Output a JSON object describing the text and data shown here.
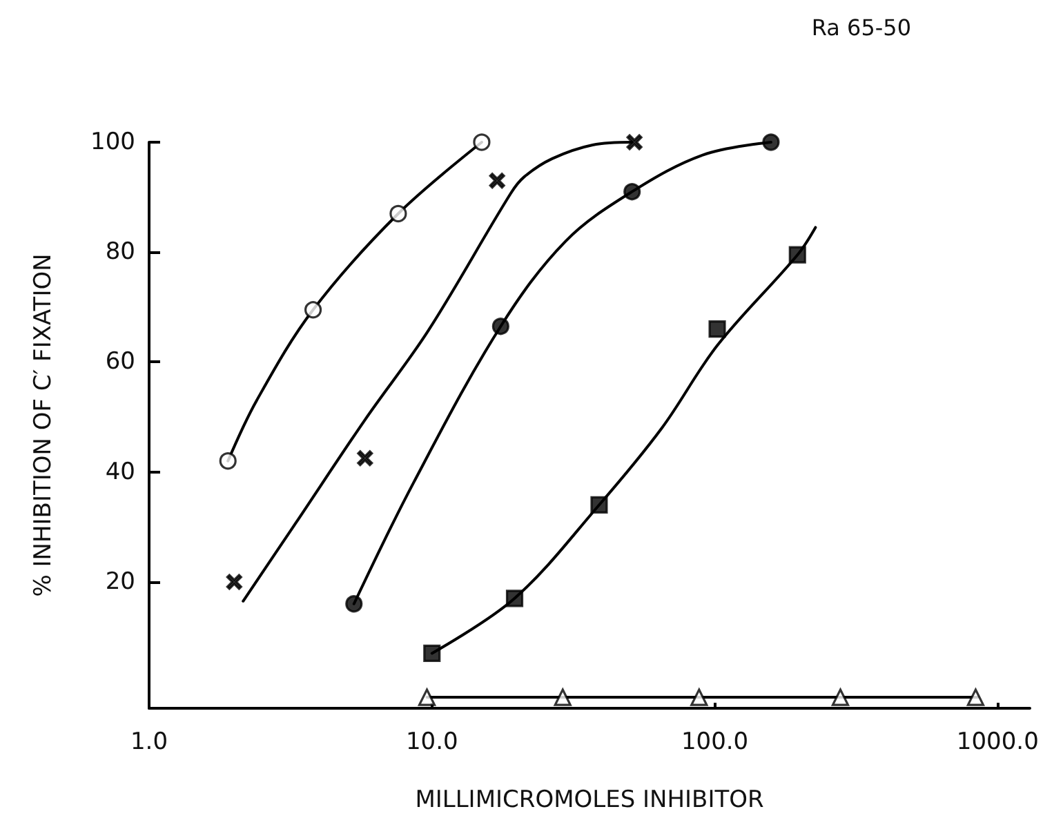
{
  "chart_data": {
    "type": "scatter",
    "xlabel": "MILLIMICROMOLES INHIBITOR",
    "ylabel": "% INHIBITION OF C′ FIXATION",
    "annotations": [
      "Ra 65-50"
    ],
    "log": "x",
    "xlim": [
      1,
      1300
    ],
    "xticks": [
      {
        "value": 1,
        "label": "1.0"
      },
      {
        "value": 10,
        "label": "10.0"
      },
      {
        "value": 100,
        "label": "100.0"
      },
      {
        "value": 1000,
        "label": "1000.0"
      }
    ],
    "ylim": [
      -3,
      100
    ],
    "yticks": [
      20,
      40,
      60,
      80,
      100
    ],
    "grid": false,
    "series": [
      {
        "marker": "circle",
        "color": "#ffffff",
        "x": [
          1.9,
          3.8,
          7.6,
          15
        ],
        "values": [
          42,
          69.5,
          87,
          100
        ]
      },
      {
        "type": "line",
        "color": "#000000",
        "x": [
          1.9,
          2.4,
          3.8,
          7.6,
          15
        ],
        "values": [
          42,
          53,
          69.5,
          87,
          100
        ]
      },
      {
        "marker": "cross",
        "color": "#000000",
        "x": [
          2.0,
          5.8,
          17,
          52
        ],
        "values": [
          20,
          42.5,
          93,
          100
        ]
      },
      {
        "type": "line",
        "color": "#000000",
        "x": [
          2.15,
          3.3,
          5.8,
          9.7,
          19,
          21.2,
          26.6,
          37,
          51
        ],
        "values": [
          16.5,
          30.7,
          49.5,
          65.7,
          90.7,
          93.7,
          97,
          99.5,
          100
        ]
      },
      {
        "marker": "circle",
        "color": "#000000",
        "x": [
          5.3,
          17.5,
          51,
          158
        ],
        "values": [
          16,
          66.5,
          91,
          100
        ]
      },
      {
        "type": "line",
        "color": "#000000",
        "x": [
          5.3,
          8.6,
          17.5,
          29.7,
          51,
          91,
          158
        ],
        "values": [
          16,
          38,
          66.5,
          82,
          91,
          97.7,
          100
        ]
      },
      {
        "marker": "square",
        "color": "#000000",
        "x": [
          10,
          19.6,
          39,
          102,
          196
        ],
        "values": [
          7,
          17,
          34,
          66,
          79.5
        ]
      },
      {
        "type": "line",
        "color": "#000000",
        "x": [
          10,
          19.6,
          39,
          65,
          102,
          196,
          227
        ],
        "values": [
          7,
          17,
          34,
          48,
          63,
          79.5,
          84.5
        ]
      },
      {
        "marker": "triangle",
        "color": "#ffffff",
        "x": [
          9.6,
          29,
          88,
          278,
          836
        ],
        "values": [
          -1,
          -1,
          -1,
          -1,
          -1
        ]
      },
      {
        "type": "line",
        "color": "#000000",
        "x": [
          9.6,
          850
        ],
        "values": [
          -1,
          -1
        ]
      }
    ]
  }
}
